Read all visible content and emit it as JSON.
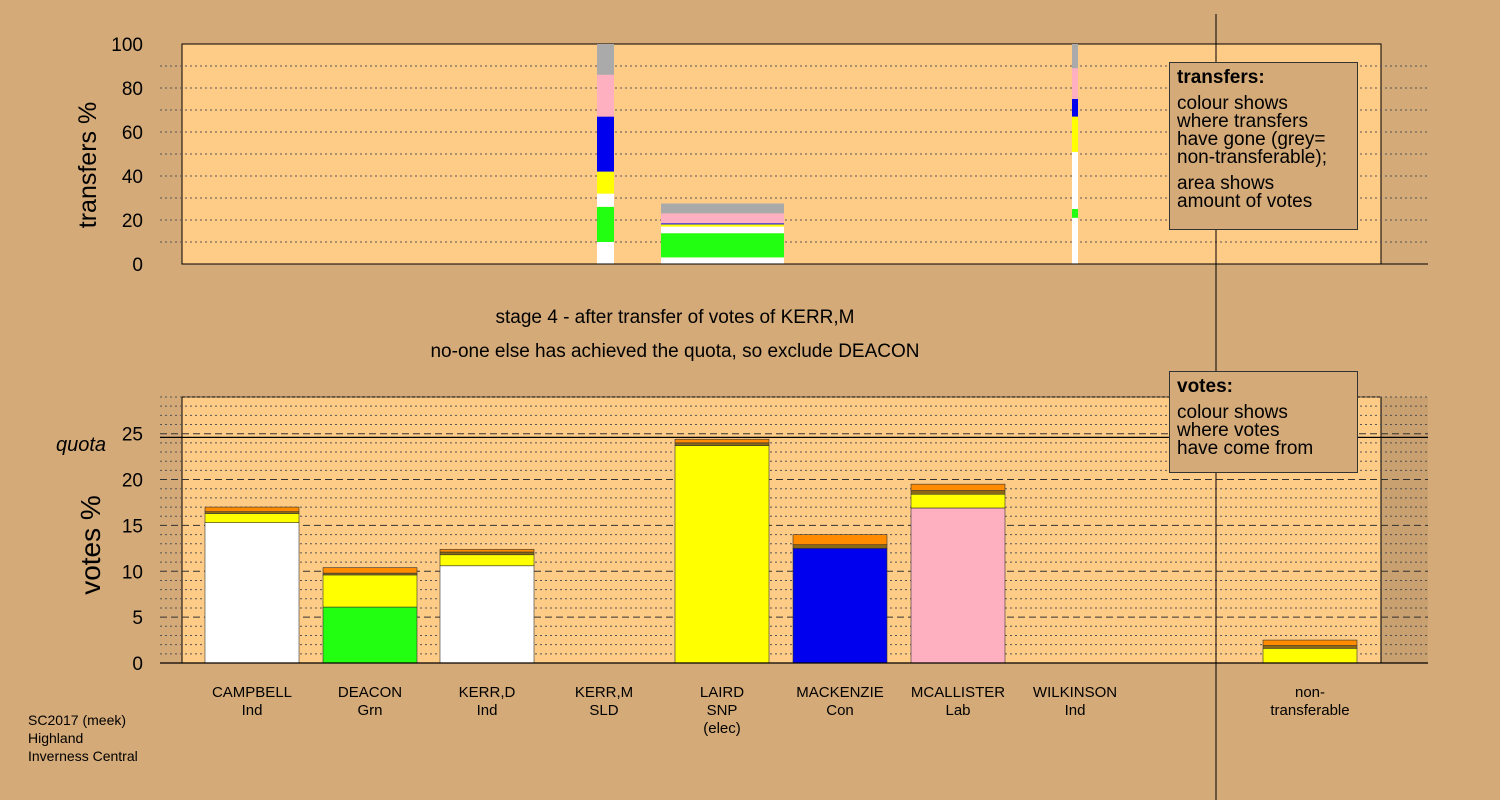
{
  "stage_text": "stage 4 - after transfer of votes of KERR,M",
  "action_text": "no-one else has achieved the quota, so exclude DEACON",
  "transfers_legend": {
    "title": "transfers:",
    "lines": [
      "colour shows where transfers have gone (grey= non-transferable);",
      "area shows amount of votes"
    ],
    "line1a": "colour shows",
    "line1b": "where transfers",
    "line1c": "have gone (grey=",
    "line1d": "non-transferable);",
    "line2a": "area shows",
    "line2b": "amount of votes"
  },
  "votes_legend": {
    "title": "votes:",
    "line1a": "colour shows",
    "line1b": "where votes",
    "line1c": "have come from"
  },
  "footer": {
    "line1": "SC2017 (meek)",
    "line2": "Highland",
    "line3": "Inverness Central"
  },
  "colors": {
    "background": "#d4aa78",
    "plot": "#ffcc88",
    "white": "#ffffff",
    "green": "#22ff11",
    "yellow": "#ffff00",
    "blue": "#0000ee",
    "pink": "#ffb0c0",
    "grey": "#aaaaaa",
    "orange": "#ff8c00",
    "brown": "#8b6914"
  },
  "chart_data": [
    {
      "type": "bar",
      "name": "transfers",
      "ylabel": "transfers %",
      "ylim": [
        0,
        100
      ],
      "yticks": [
        0,
        20,
        40,
        60,
        80,
        100
      ],
      "bars": [
        {
          "source": "KERR,M",
          "total_votes_pct": 0.35,
          "segments": [
            {
              "to": "CAMPBELL",
              "color": "white",
              "from": 0,
              "to_pct": 10
            },
            {
              "to": "DEACON",
              "color": "green",
              "from": 10,
              "to_pct": 26
            },
            {
              "to": "KERR,D",
              "color": "white",
              "from": 26,
              "to_pct": 32
            },
            {
              "to": "LAIRD",
              "color": "yellow",
              "from": 32,
              "to_pct": 42
            },
            {
              "to": "MACKENZIE",
              "color": "blue",
              "from": 42,
              "to_pct": 67
            },
            {
              "to": "MCALLISTER",
              "color": "pink",
              "from": 67,
              "to_pct": 86
            },
            {
              "to": "non-transferable",
              "color": "grey",
              "from": 86,
              "to_pct": 100
            }
          ]
        },
        {
          "source": "LAIRD surplus",
          "total_votes_pct": 27.5,
          "segments": [
            {
              "to": "CAMPBELL",
              "color": "white",
              "from": 0,
              "to_pct": 3
            },
            {
              "to": "DEACON",
              "color": "green",
              "from": 3,
              "to_pct": 14
            },
            {
              "to": "KERR,D",
              "color": "white",
              "from": 14,
              "to_pct": 17
            },
            {
              "to": "LAIRD",
              "color": "yellow",
              "from": 17,
              "to_pct": 18
            },
            {
              "to": "MACKENZIE",
              "color": "blue",
              "from": 18,
              "to_pct": 18.5
            },
            {
              "to": "MCALLISTER",
              "color": "pink",
              "from": 18.5,
              "to_pct": 23
            },
            {
              "to": "non-transferable",
              "color": "grey",
              "from": 23,
              "to_pct": 27.5
            }
          ]
        },
        {
          "source": "WILKINSON",
          "total_votes_pct": 0.1,
          "segments": [
            {
              "to": "CAMPBELL",
              "color": "white",
              "from": 0,
              "to_pct": 21
            },
            {
              "to": "DEACON",
              "color": "green",
              "from": 21,
              "to_pct": 25
            },
            {
              "to": "KERR,D",
              "color": "white",
              "from": 25,
              "to_pct": 51
            },
            {
              "to": "LAIRD",
              "color": "yellow",
              "from": 51,
              "to_pct": 67
            },
            {
              "to": "MACKENZIE",
              "color": "blue",
              "from": 67,
              "to_pct": 75
            },
            {
              "to": "MCALLISTER",
              "color": "pink",
              "from": 75,
              "to_pct": 89
            },
            {
              "to": "non-transferable",
              "color": "grey",
              "from": 89,
              "to_pct": 100
            }
          ]
        }
      ]
    },
    {
      "type": "bar",
      "name": "votes",
      "ylabel": "votes %",
      "ylim": [
        0,
        29
      ],
      "yticks": [
        0,
        5,
        10,
        15,
        20,
        25
      ],
      "quota": 24.6,
      "quota_label": "quota",
      "candidates": [
        {
          "name": "CAMPBELL",
          "party": "Ind",
          "note": "",
          "segments": [
            {
              "color": "white",
              "value": 15.3
            },
            {
              "color": "yellow",
              "value": 1.0
            },
            {
              "color": "brown",
              "value": 0.2
            },
            {
              "color": "orange",
              "value": 0.5
            }
          ]
        },
        {
          "name": "DEACON",
          "party": "Grn",
          "note": "",
          "segments": [
            {
              "color": "green",
              "value": 6.1
            },
            {
              "color": "yellow",
              "value": 3.5
            },
            {
              "color": "brown",
              "value": 0.2
            },
            {
              "color": "orange",
              "value": 0.6
            }
          ]
        },
        {
          "name": "KERR,D",
          "party": "Ind",
          "note": "",
          "segments": [
            {
              "color": "white",
              "value": 10.6
            },
            {
              "color": "yellow",
              "value": 1.2
            },
            {
              "color": "brown",
              "value": 0.3
            },
            {
              "color": "orange",
              "value": 0.3
            }
          ]
        },
        {
          "name": "KERR,M",
          "party": "SLD",
          "note": "",
          "segments": []
        },
        {
          "name": "LAIRD",
          "party": "SNP",
          "note": "(elec)",
          "segments": [
            {
              "color": "yellow",
              "value": 23.7
            },
            {
              "color": "brown",
              "value": 0.3
            },
            {
              "color": "orange",
              "value": 0.4
            }
          ]
        },
        {
          "name": "MACKENZIE",
          "party": "Con",
          "note": "",
          "segments": [
            {
              "color": "blue",
              "value": 12.5
            },
            {
              "color": "brown",
              "value": 0.4
            },
            {
              "color": "orange",
              "value": 1.1
            }
          ]
        },
        {
          "name": "MCALLISTER",
          "party": "Lab",
          "note": "",
          "segments": [
            {
              "color": "pink",
              "value": 16.9
            },
            {
              "color": "yellow",
              "value": 1.5
            },
            {
              "color": "brown",
              "value": 0.4
            },
            {
              "color": "orange",
              "value": 0.7
            }
          ]
        },
        {
          "name": "WILKINSON",
          "party": "Ind",
          "note": "",
          "segments": []
        }
      ],
      "nontransferable": {
        "label_line1": "non-",
        "label_line2": "transferable",
        "segments": [
          {
            "color": "yellow",
            "value": 1.6
          },
          {
            "color": "brown",
            "value": 0.3
          },
          {
            "color": "orange",
            "value": 0.6
          }
        ]
      }
    }
  ]
}
